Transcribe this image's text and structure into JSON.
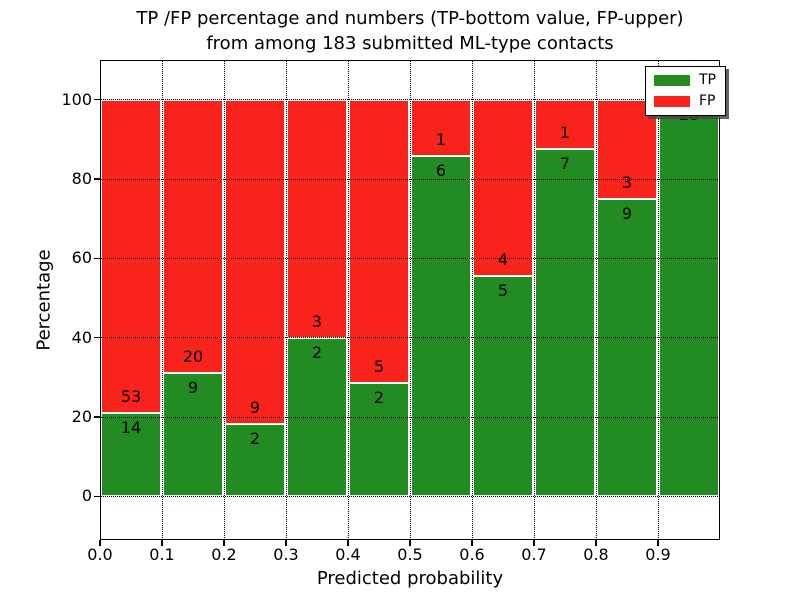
{
  "title": {
    "line1": "TP /FP percentage and numbers (TP-bottom value, FP-upper)",
    "line2": "from among 183 submitted ML-type contacts"
  },
  "x_axis": {
    "label": "Predicted probability",
    "ticks": [
      {
        "value": 0.0,
        "label": "0.0"
      },
      {
        "value": 0.1,
        "label": "0.1"
      },
      {
        "value": 0.2,
        "label": "0.2"
      },
      {
        "value": 0.3,
        "label": "0.3"
      },
      {
        "value": 0.4,
        "label": "0.4"
      },
      {
        "value": 0.5,
        "label": "0.5"
      },
      {
        "value": 0.6,
        "label": "0.6"
      },
      {
        "value": 0.7,
        "label": "0.7"
      },
      {
        "value": 0.8,
        "label": "0.8"
      },
      {
        "value": 0.9,
        "label": "0.9"
      }
    ]
  },
  "y_axis": {
    "label": "Percentage",
    "ticks": [
      {
        "value": 0,
        "label": "0"
      },
      {
        "value": 20,
        "label": "20"
      },
      {
        "value": 40,
        "label": "40"
      },
      {
        "value": 60,
        "label": "60"
      },
      {
        "value": 80,
        "label": "80"
      },
      {
        "value": 100,
        "label": "100"
      }
    ]
  },
  "legend": {
    "position": "upper right",
    "items": [
      {
        "label": "TP",
        "color": "#228b22"
      },
      {
        "label": "FP",
        "color": "#f8231b"
      }
    ]
  },
  "chart_data": {
    "type": "bar",
    "variant": "stacked-percentage",
    "title": "TP /FP percentage and numbers (TP-bottom value, FP-upper) from among 183 submitted ML-type contacts",
    "total_contacts": 183,
    "xlabel": "Predicted probability",
    "ylabel": "Percentage",
    "xlim": [
      0.0,
      1.0
    ],
    "ylim_display": [
      -11,
      110
    ],
    "bin_width": 0.1,
    "grid": "dotted",
    "legend_position": "upper right",
    "series": [
      {
        "name": "TP",
        "color": "#228b22"
      },
      {
        "name": "FP",
        "color": "#f8231b"
      }
    ],
    "bins": [
      {
        "range": "0.0-0.1",
        "tp": 14,
        "fp": 53,
        "tp_percent": 20.9
      },
      {
        "range": "0.1-0.2",
        "tp": 9,
        "fp": 20,
        "tp_percent": 31.0
      },
      {
        "range": "0.2-0.3",
        "tp": 2,
        "fp": 9,
        "tp_percent": 18.2
      },
      {
        "range": "0.3-0.4",
        "tp": 2,
        "fp": 3,
        "tp_percent": 40.0
      },
      {
        "range": "0.4-0.5",
        "tp": 2,
        "fp": 5,
        "tp_percent": 28.6
      },
      {
        "range": "0.5-0.6",
        "tp": 6,
        "fp": 1,
        "tp_percent": 85.7
      },
      {
        "range": "0.6-0.7",
        "tp": 5,
        "fp": 4,
        "tp_percent": 55.6
      },
      {
        "range": "0.7-0.8",
        "tp": 7,
        "fp": 1,
        "tp_percent": 87.5
      },
      {
        "range": "0.8-0.9",
        "tp": 9,
        "fp": 3,
        "tp_percent": 75.0
      },
      {
        "range": "0.9-1.0",
        "tp": 28,
        "fp": 0,
        "tp_percent": 100.0
      }
    ]
  }
}
